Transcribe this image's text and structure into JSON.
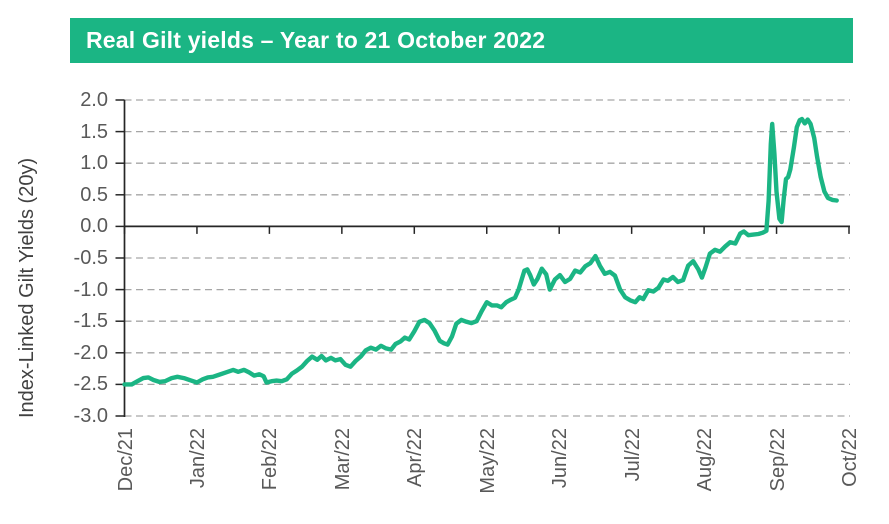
{
  "header": {
    "title": "Real Gilt yields – Year to 21 October 2022",
    "bg_color": "#1bb584",
    "text_color": "#ffffff"
  },
  "chart_data": {
    "type": "line",
    "title": "Real Gilt yields – Year to 21 October 2022",
    "ylabel": "Index-Linked Gilt Yields (20y)",
    "xlabel": "",
    "ylim": [
      -3.0,
      2.0
    ],
    "y_tick_labels": [
      "2.0",
      "1.5",
      "1.0",
      "0.5",
      "0.0",
      "-0.5",
      "-1.0",
      "-1.5",
      "-2.0",
      "-2.5",
      "-3.0"
    ],
    "y_tick_values": [
      2.0,
      1.5,
      1.0,
      0.5,
      0.0,
      -0.5,
      -1.0,
      -1.5,
      -2.0,
      -2.5,
      -3.0
    ],
    "x_tick_labels": [
      "Dec/21",
      "Jan/22",
      "Feb/22",
      "Mar/22",
      "Apr/22",
      "May/22",
      "Jun/22",
      "Jul/22",
      "Aug/22",
      "Sep/22",
      "Oct/22"
    ],
    "x_range_months": [
      0,
      10
    ],
    "grid": "horizontal dashed gridlines every 0.5; solid dark line at 0.0",
    "legend": "none",
    "series": [
      {
        "name": "Index-Linked Gilt Yields (20y)",
        "color": "#1bb584",
        "points_format": [
          "x = months after Dec/21 tick",
          "y = real yield %"
        ],
        "points": [
          [
            0.0,
            -2.5
          ],
          [
            0.1,
            -2.5
          ],
          [
            0.18,
            -2.45
          ],
          [
            0.26,
            -2.4
          ],
          [
            0.33,
            -2.39
          ],
          [
            0.4,
            -2.43
          ],
          [
            0.48,
            -2.46
          ],
          [
            0.56,
            -2.45
          ],
          [
            0.65,
            -2.4
          ],
          [
            0.73,
            -2.38
          ],
          [
            0.82,
            -2.4
          ],
          [
            0.92,
            -2.44
          ],
          [
            1.0,
            -2.47
          ],
          [
            1.08,
            -2.42
          ],
          [
            1.15,
            -2.39
          ],
          [
            1.22,
            -2.38
          ],
          [
            1.3,
            -2.35
          ],
          [
            1.4,
            -2.31
          ],
          [
            1.5,
            -2.27
          ],
          [
            1.57,
            -2.3
          ],
          [
            1.65,
            -2.27
          ],
          [
            1.72,
            -2.31
          ],
          [
            1.79,
            -2.36
          ],
          [
            1.86,
            -2.34
          ],
          [
            1.92,
            -2.37
          ],
          [
            1.96,
            -2.47
          ],
          [
            2.03,
            -2.45
          ],
          [
            2.1,
            -2.44
          ],
          [
            2.17,
            -2.45
          ],
          [
            2.24,
            -2.42
          ],
          [
            2.31,
            -2.33
          ],
          [
            2.38,
            -2.28
          ],
          [
            2.45,
            -2.22
          ],
          [
            2.52,
            -2.13
          ],
          [
            2.59,
            -2.06
          ],
          [
            2.66,
            -2.11
          ],
          [
            2.72,
            -2.05
          ],
          [
            2.78,
            -2.12
          ],
          [
            2.85,
            -2.08
          ],
          [
            2.91,
            -2.12
          ],
          [
            2.98,
            -2.1
          ],
          [
            3.05,
            -2.19
          ],
          [
            3.12,
            -2.22
          ],
          [
            3.19,
            -2.13
          ],
          [
            3.26,
            -2.06
          ],
          [
            3.33,
            -1.96
          ],
          [
            3.4,
            -1.92
          ],
          [
            3.47,
            -1.95
          ],
          [
            3.54,
            -1.89
          ],
          [
            3.61,
            -1.93
          ],
          [
            3.68,
            -1.95
          ],
          [
            3.74,
            -1.86
          ],
          [
            3.81,
            -1.82
          ],
          [
            3.87,
            -1.76
          ],
          [
            3.93,
            -1.79
          ],
          [
            4.0,
            -1.66
          ],
          [
            4.07,
            -1.51
          ],
          [
            4.14,
            -1.48
          ],
          [
            4.21,
            -1.53
          ],
          [
            4.28,
            -1.65
          ],
          [
            4.35,
            -1.81
          ],
          [
            4.41,
            -1.85
          ],
          [
            4.46,
            -1.87
          ],
          [
            4.52,
            -1.74
          ],
          [
            4.58,
            -1.54
          ],
          [
            4.65,
            -1.48
          ],
          [
            4.72,
            -1.51
          ],
          [
            4.79,
            -1.53
          ],
          [
            4.86,
            -1.5
          ],
          [
            4.93,
            -1.34
          ],
          [
            5.0,
            -1.2
          ],
          [
            5.07,
            -1.25
          ],
          [
            5.14,
            -1.25
          ],
          [
            5.2,
            -1.28
          ],
          [
            5.27,
            -1.2
          ],
          [
            5.33,
            -1.16
          ],
          [
            5.39,
            -1.13
          ],
          [
            5.44,
            -1.0
          ],
          [
            5.48,
            -0.85
          ],
          [
            5.52,
            -0.7
          ],
          [
            5.56,
            -0.68
          ],
          [
            5.6,
            -0.77
          ],
          [
            5.65,
            -0.92
          ],
          [
            5.7,
            -0.83
          ],
          [
            5.76,
            -0.67
          ],
          [
            5.82,
            -0.76
          ],
          [
            5.87,
            -1.0
          ],
          [
            5.94,
            -0.84
          ],
          [
            6.01,
            -0.77
          ],
          [
            6.08,
            -0.88
          ],
          [
            6.15,
            -0.83
          ],
          [
            6.22,
            -0.7
          ],
          [
            6.29,
            -0.73
          ],
          [
            6.36,
            -0.63
          ],
          [
            6.43,
            -0.58
          ],
          [
            6.5,
            -0.47
          ],
          [
            6.56,
            -0.62
          ],
          [
            6.63,
            -0.75
          ],
          [
            6.7,
            -0.72
          ],
          [
            6.77,
            -0.78
          ],
          [
            6.84,
            -1.0
          ],
          [
            6.91,
            -1.12
          ],
          [
            6.98,
            -1.17
          ],
          [
            7.05,
            -1.2
          ],
          [
            7.11,
            -1.12
          ],
          [
            7.16,
            -1.15
          ],
          [
            7.23,
            -1.01
          ],
          [
            7.3,
            -1.03
          ],
          [
            7.37,
            -0.97
          ],
          [
            7.44,
            -0.84
          ],
          [
            7.5,
            -0.86
          ],
          [
            7.57,
            -0.8
          ],
          [
            7.64,
            -0.88
          ],
          [
            7.71,
            -0.85
          ],
          [
            7.78,
            -0.62
          ],
          [
            7.85,
            -0.55
          ],
          [
            7.92,
            -0.68
          ],
          [
            7.97,
            -0.81
          ],
          [
            8.02,
            -0.65
          ],
          [
            8.08,
            -0.43
          ],
          [
            8.15,
            -0.37
          ],
          [
            8.22,
            -0.4
          ],
          [
            8.29,
            -0.32
          ],
          [
            8.36,
            -0.25
          ],
          [
            8.43,
            -0.27
          ],
          [
            8.5,
            -0.11
          ],
          [
            8.55,
            -0.08
          ],
          [
            8.61,
            -0.14
          ],
          [
            8.68,
            -0.13
          ],
          [
            8.75,
            -0.12
          ],
          [
            8.81,
            -0.1
          ],
          [
            8.86,
            -0.07
          ],
          [
            8.89,
            0.4
          ],
          [
            8.92,
            1.3
          ],
          [
            8.94,
            1.62
          ],
          [
            8.97,
            1.15
          ],
          [
            9.0,
            0.55
          ],
          [
            9.04,
            0.12
          ],
          [
            9.07,
            0.07
          ],
          [
            9.1,
            0.45
          ],
          [
            9.13,
            0.75
          ],
          [
            9.16,
            0.78
          ],
          [
            9.19,
            0.9
          ],
          [
            9.24,
            1.25
          ],
          [
            9.28,
            1.57
          ],
          [
            9.32,
            1.68
          ],
          [
            9.35,
            1.7
          ],
          [
            9.39,
            1.63
          ],
          [
            9.43,
            1.69
          ],
          [
            9.47,
            1.62
          ],
          [
            9.52,
            1.4
          ],
          [
            9.56,
            1.1
          ],
          [
            9.61,
            0.78
          ],
          [
            9.66,
            0.55
          ],
          [
            9.71,
            0.45
          ],
          [
            9.77,
            0.42
          ],
          [
            9.83,
            0.41
          ]
        ]
      }
    ],
    "colors": {
      "line": "#1bb584",
      "gridline": "#a6a6a6",
      "axis": "#262626",
      "tick_label": "#595959",
      "axis_title": "#404040"
    }
  }
}
